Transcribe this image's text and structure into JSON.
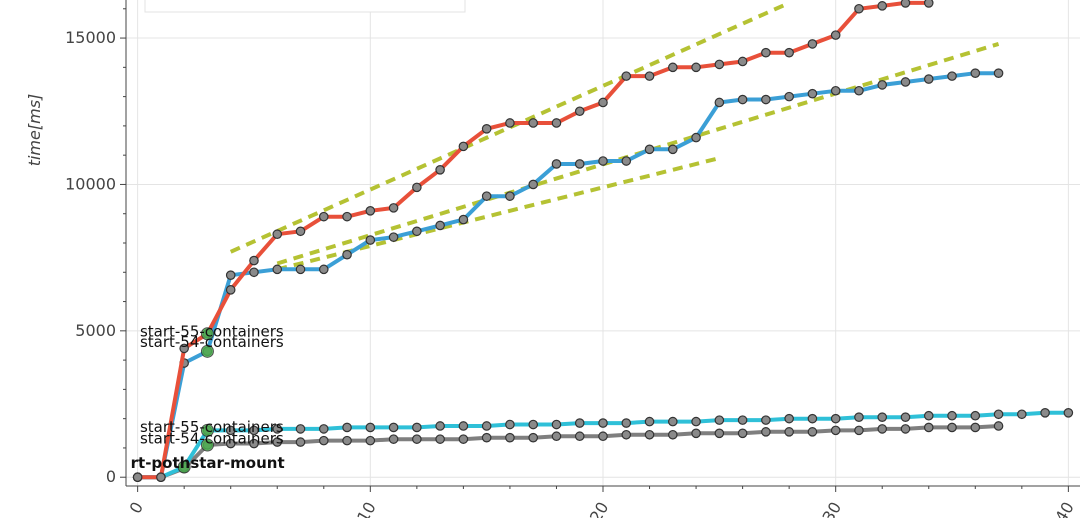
{
  "chart_data": {
    "type": "line",
    "title": "",
    "xlabel": "",
    "ylabel": "time[ms]",
    "xlim": [
      -0.5,
      40.5
    ],
    "ylim": [
      -300,
      16300
    ],
    "grid": true,
    "x_ticks": [
      0,
      10,
      20,
      30,
      40
    ],
    "x_tick_labels": [
      "0",
      "10",
      "20",
      "30",
      "40"
    ],
    "y_ticks": [
      0,
      5000,
      10000,
      15000
    ],
    "y_tick_labels": [
      "0",
      "5000",
      "10000",
      "15000"
    ],
    "series": [
      {
        "color": "#e8503a",
        "x": [
          0,
          1,
          2,
          3,
          4,
          5,
          6,
          7,
          8,
          9,
          10,
          11,
          12,
          13,
          14,
          15,
          16,
          17,
          18,
          19,
          20,
          21,
          22,
          23,
          24,
          25,
          26,
          27,
          28,
          29,
          30,
          31,
          32,
          33,
          34
        ],
        "values": [
          0,
          0,
          4400,
          4900,
          6400,
          7400,
          8300,
          8400,
          8900,
          8900,
          9100,
          9200,
          9900,
          10500,
          11300,
          11900,
          12100,
          12100,
          12100,
          12500,
          12800,
          13700,
          13700,
          14000,
          14000,
          14100,
          14200,
          14500,
          14500,
          14800,
          15100,
          16000,
          16100,
          16200,
          16200
        ]
      },
      {
        "color": "#3b9fd6",
        "x": [
          0,
          1,
          2,
          3,
          4,
          5,
          6,
          7,
          8,
          9,
          10,
          11,
          12,
          13,
          14,
          15,
          16,
          17,
          18,
          19,
          20,
          21,
          22,
          23,
          24,
          25,
          26,
          27,
          28,
          29,
          30,
          31,
          32,
          33,
          34,
          35,
          36,
          37
        ],
        "values": [
          0,
          0,
          3900,
          4300,
          6900,
          7000,
          7100,
          7100,
          7100,
          7600,
          8100,
          8200,
          8400,
          8600,
          8800,
          9600,
          9600,
          10000,
          10700,
          10700,
          10800,
          10800,
          11200,
          11200,
          11600,
          12800,
          12900,
          12900,
          13000,
          13100,
          13200,
          13200,
          13400,
          13500,
          13600,
          13700,
          13800,
          13800
        ]
      },
      {
        "color": "#2fc0d8",
        "x": [
          0,
          1,
          2,
          3,
          4,
          5,
          6,
          7,
          8,
          9,
          10,
          11,
          12,
          13,
          14,
          15,
          16,
          17,
          18,
          19,
          20,
          21,
          22,
          23,
          24,
          25,
          26,
          27,
          28,
          29,
          30,
          31,
          32,
          33,
          34,
          35,
          36,
          37,
          38,
          39,
          40
        ],
        "values": [
          0,
          0,
          350,
          1600,
          1600,
          1600,
          1650,
          1650,
          1650,
          1700,
          1700,
          1700,
          1700,
          1750,
          1750,
          1750,
          1800,
          1800,
          1800,
          1850,
          1850,
          1850,
          1900,
          1900,
          1900,
          1950,
          1950,
          1950,
          2000,
          2000,
          2000,
          2050,
          2050,
          2050,
          2100,
          2100,
          2100,
          2150,
          2150,
          2200,
          2200
        ]
      },
      {
        "color": "#7f7f7f",
        "x": [
          0,
          1,
          2,
          3,
          4,
          5,
          6,
          7,
          8,
          9,
          10,
          11,
          12,
          13,
          14,
          15,
          16,
          17,
          18,
          19,
          20,
          21,
          22,
          23,
          24,
          25,
          26,
          27,
          28,
          29,
          30,
          31,
          32,
          33,
          34,
          35,
          36,
          37
        ],
        "values": [
          0,
          0,
          300,
          1100,
          1150,
          1150,
          1200,
          1200,
          1250,
          1250,
          1250,
          1300,
          1300,
          1300,
          1300,
          1350,
          1350,
          1350,
          1400,
          1400,
          1400,
          1450,
          1450,
          1450,
          1500,
          1500,
          1500,
          1550,
          1550,
          1550,
          1600,
          1600,
          1650,
          1650,
          1700,
          1700,
          1700,
          1750
        ]
      }
    ],
    "trend_lines": [
      {
        "color": "#b5c233",
        "x": [
          4,
          28
        ],
        "values": [
          7700,
          16200
        ]
      },
      {
        "color": "#b5c233",
        "x": [
          6,
          37
        ],
        "values": [
          7300,
          14800
        ]
      },
      {
        "color": "#b5c233",
        "x": [
          6,
          25
        ],
        "values": [
          7100,
          10900
        ]
      }
    ],
    "annotations": [
      {
        "text": "start-55-containers",
        "x": 0.1,
        "y": 4800,
        "bold": false
      },
      {
        "text": "start-54-containers",
        "x": 0.1,
        "y": 4450,
        "bold": false
      },
      {
        "text": "start-55-containers",
        "x": 0.1,
        "y": 1550,
        "bold": false
      },
      {
        "text": "start-54-containers",
        "x": 0.1,
        "y": 1150,
        "bold": false
      },
      {
        "text": "rt-pothstar-mount",
        "x": -0.3,
        "y": 320,
        "bold": true
      }
    ]
  }
}
